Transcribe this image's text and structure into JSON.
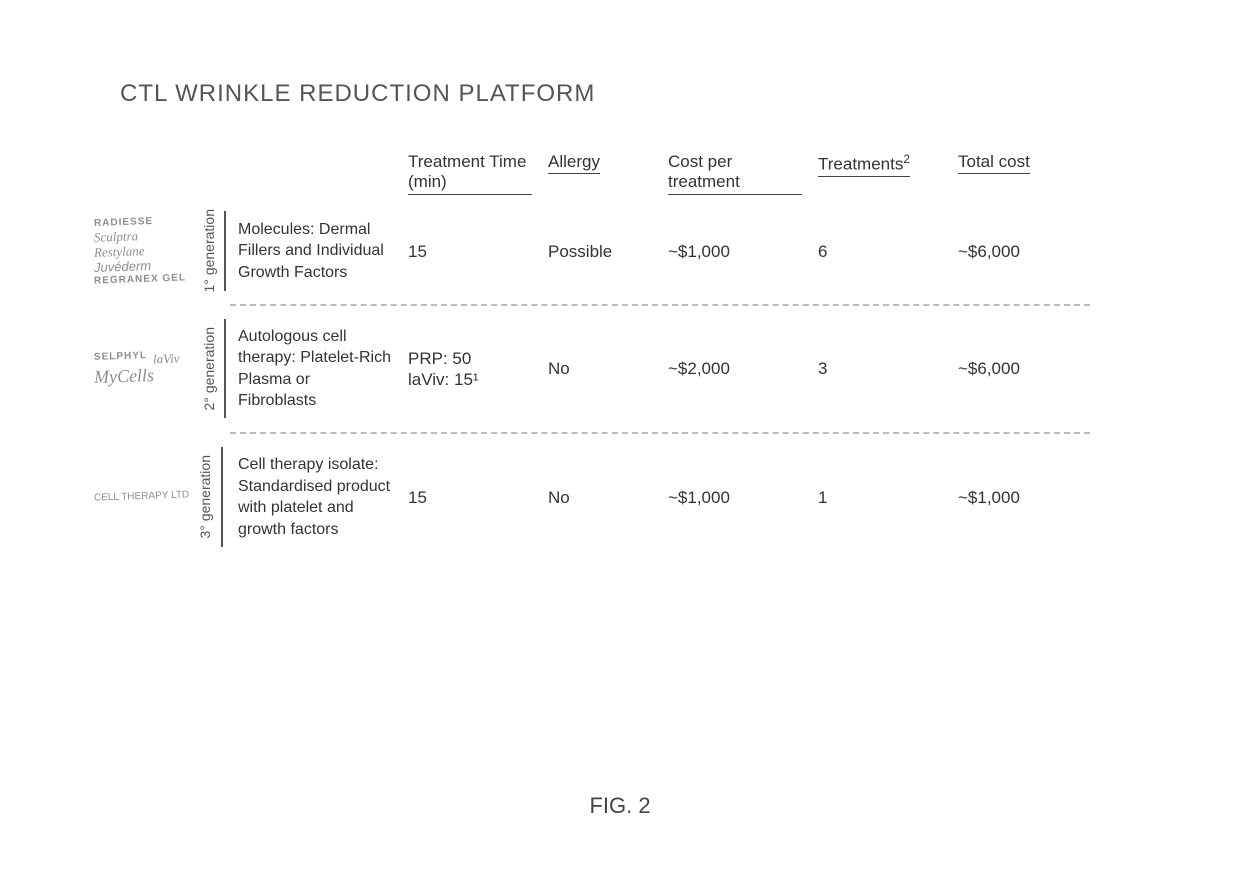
{
  "title": "CTL WRINKLE REDUCTION PLATFORM",
  "figure_label": "FIG. 2",
  "headers": {
    "treatment_time": "Treatment Time (min)",
    "allergy": "Allergy",
    "cost_per": "Cost per treatment",
    "treatments": "Treatments",
    "treatments_sup": "2",
    "total_cost": "Total cost"
  },
  "rows": [
    {
      "generation": "1° generation",
      "brands": [
        "RADIESSE",
        "Sculptra",
        "Restylane",
        "Juvéderm",
        "REGRANEX GEL"
      ],
      "description": "Molecules: Dermal Fillers and Individual Growth Factors",
      "treatment_time": "15",
      "allergy": "Possible",
      "cost_per": "~$1,000",
      "treatments": "6",
      "total_cost": "~$6,000"
    },
    {
      "generation": "2° generation",
      "brands": [
        "SELPHYL",
        "laViv",
        "MyCells"
      ],
      "description": "Autologous cell therapy: Platelet-Rich Plasma or Fibroblasts",
      "treatment_time": "PRP: 50\nlaViv: 15¹",
      "allergy": "No",
      "cost_per": "~$2,000",
      "treatments": "3",
      "total_cost": "~$6,000"
    },
    {
      "generation": "3° generation",
      "brands": [
        "CELL THERAPY LTD"
      ],
      "description": "Cell therapy isolate: Standardised product with platelet and growth factors",
      "treatment_time": "15",
      "allergy": "No",
      "cost_per": "~$1,000",
      "treatments": "1",
      "total_cost": "~$1,000"
    }
  ]
}
